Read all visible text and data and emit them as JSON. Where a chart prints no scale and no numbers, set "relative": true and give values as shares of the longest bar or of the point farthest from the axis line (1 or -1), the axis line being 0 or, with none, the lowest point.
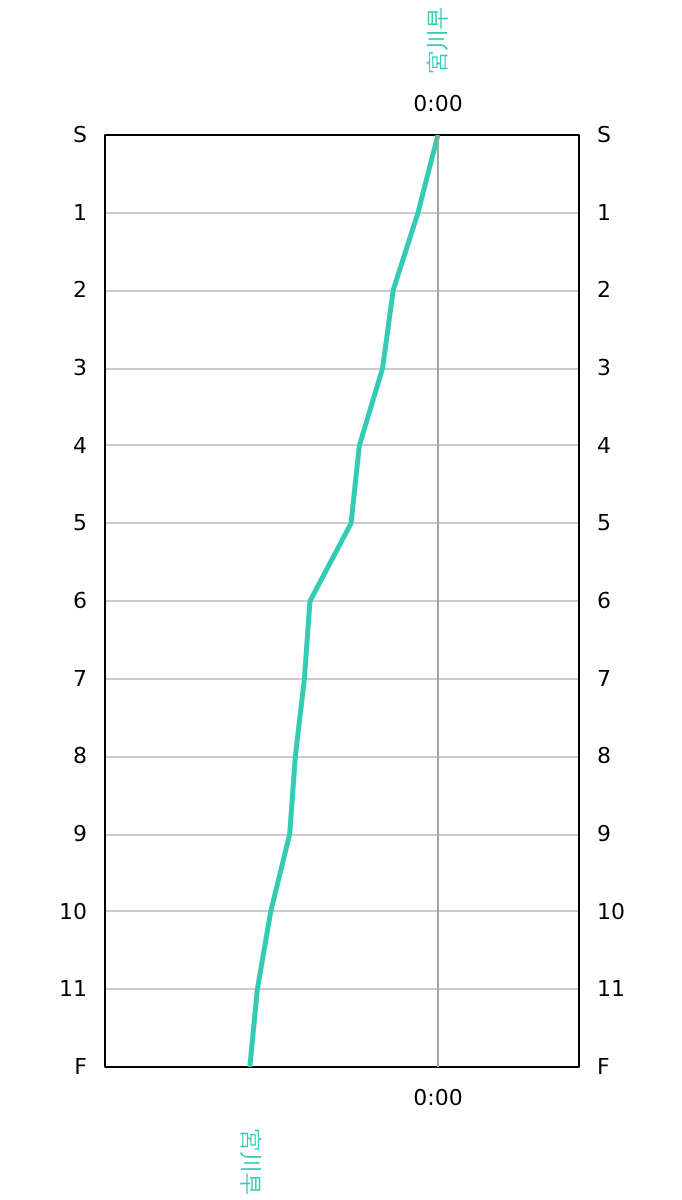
{
  "chart_data": {
    "type": "line",
    "orientation": "horizontal",
    "relative": true,
    "categories": [
      "S",
      "1",
      "2",
      "3",
      "4",
      "5",
      "6",
      "7",
      "8",
      "9",
      "10",
      "11",
      "F"
    ],
    "series": [
      {
        "name": "宮川早",
        "color": "#33ccb3",
        "values": [
          0,
          -0.106,
          -0.238,
          -0.294,
          -0.418,
          -0.462,
          -0.68,
          -0.71,
          -0.758,
          -0.788,
          -0.889,
          -0.96,
          -1
        ]
      }
    ],
    "ref_lines": [
      {
        "axis": "x",
        "value": 0,
        "label": "0:00",
        "color": "#a0a0a0"
      }
    ],
    "grid": "y",
    "marker": "none",
    "line_style": "solid"
  }
}
